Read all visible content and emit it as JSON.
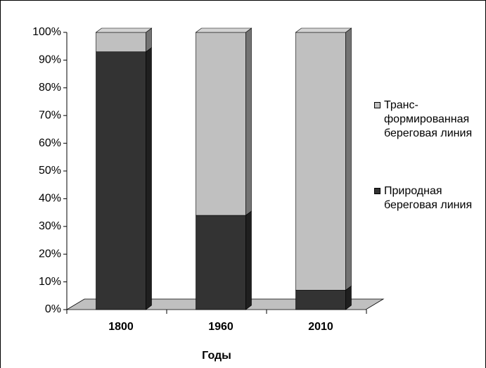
{
  "chart_data": {
    "type": "bar3d_stacked",
    "categories": [
      "1800",
      "1960",
      "2010"
    ],
    "x_label": "Годы",
    "series": [
      {
        "name": "Природная береговая линия",
        "color": "#333333",
        "values": [
          93,
          34,
          7
        ]
      },
      {
        "name": "Транс-формированная береговая линия",
        "color": "#c0c0c0",
        "values": [
          7,
          66,
          93
        ]
      }
    ],
    "ylim": [
      0,
      100
    ],
    "yticks": [
      {
        "value": 0,
        "label": "0%"
      },
      {
        "value": 10,
        "label": "10%"
      },
      {
        "value": 20,
        "label": "20%"
      },
      {
        "value": 30,
        "label": "30%"
      },
      {
        "value": 40,
        "label": "40%"
      },
      {
        "value": 50,
        "label": "50%"
      },
      {
        "value": 60,
        "label": "60%"
      },
      {
        "value": 70,
        "label": "70%"
      },
      {
        "value": 80,
        "label": "80%"
      },
      {
        "value": 90,
        "label": "90%"
      },
      {
        "value": 100,
        "label": "100%"
      }
    ]
  }
}
